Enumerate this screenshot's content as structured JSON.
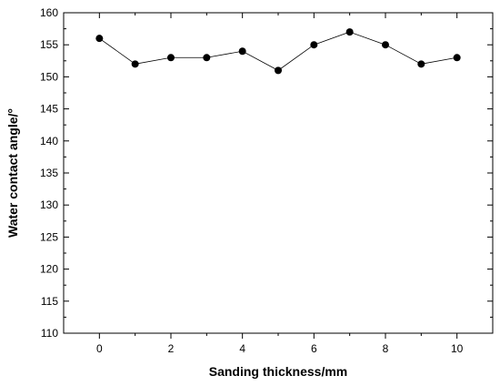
{
  "chart_data": {
    "type": "line",
    "title": "",
    "xlabel": "Sanding thickness/mm",
    "ylabel": "Water contact angle/°",
    "xlim": [
      -1,
      11
    ],
    "ylim": [
      110,
      160
    ],
    "xticks": [
      0,
      2,
      4,
      6,
      8,
      10
    ],
    "yticks": [
      110,
      115,
      120,
      125,
      130,
      135,
      140,
      145,
      150,
      155,
      160
    ],
    "grid": false,
    "series": [
      {
        "x": [
          0,
          1,
          2,
          3,
          4,
          5,
          6,
          7,
          8,
          9,
          10
        ],
        "y": [
          156,
          152,
          153,
          153,
          154,
          151,
          155,
          157,
          155,
          152,
          153
        ],
        "marker": "circle",
        "color": "#000000"
      }
    ]
  }
}
